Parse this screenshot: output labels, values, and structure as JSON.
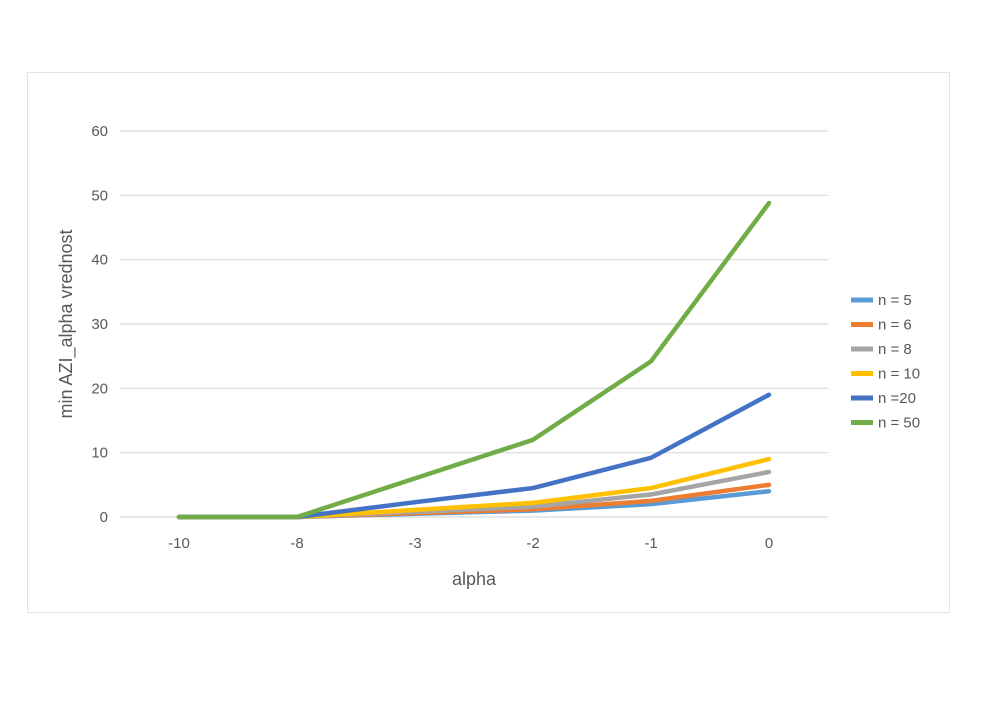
{
  "chart_data": {
    "type": "line",
    "title": "",
    "xlabel": "alpha",
    "ylabel": "min AZI_alpha vrednost",
    "categories": [
      "-10",
      "-8",
      "-3",
      "-2",
      "-1",
      "0"
    ],
    "ylim": [
      0,
      60
    ],
    "yticks": [
      "0",
      "10",
      "20",
      "30",
      "40",
      "50",
      "60"
    ],
    "grid": true,
    "legend_position": "right",
    "series": [
      {
        "name": "n = 5",
        "color": "#5B9BD5",
        "values": [
          0,
          0,
          0.5,
          1.0,
          2.0,
          4.0
        ]
      },
      {
        "name": "n = 6",
        "color": "#ED7D31",
        "values": [
          0,
          0,
          0.6,
          1.2,
          2.5,
          5.0
        ]
      },
      {
        "name": "n = 8",
        "color": "#A5A5A5",
        "values": [
          0,
          0,
          0.8,
          1.6,
          3.5,
          7.0
        ]
      },
      {
        "name": "n = 10",
        "color": "#FFC000",
        "values": [
          0,
          0,
          1.1,
          2.2,
          4.5,
          9.0
        ]
      },
      {
        "name": "n =20",
        "color": "#4472C4",
        "values": [
          0,
          0,
          2.3,
          4.5,
          9.2,
          19.0
        ]
      },
      {
        "name": "n = 50",
        "color": "#70AD47",
        "values": [
          0,
          0,
          6.0,
          12.0,
          24.2,
          48.8
        ]
      }
    ]
  }
}
